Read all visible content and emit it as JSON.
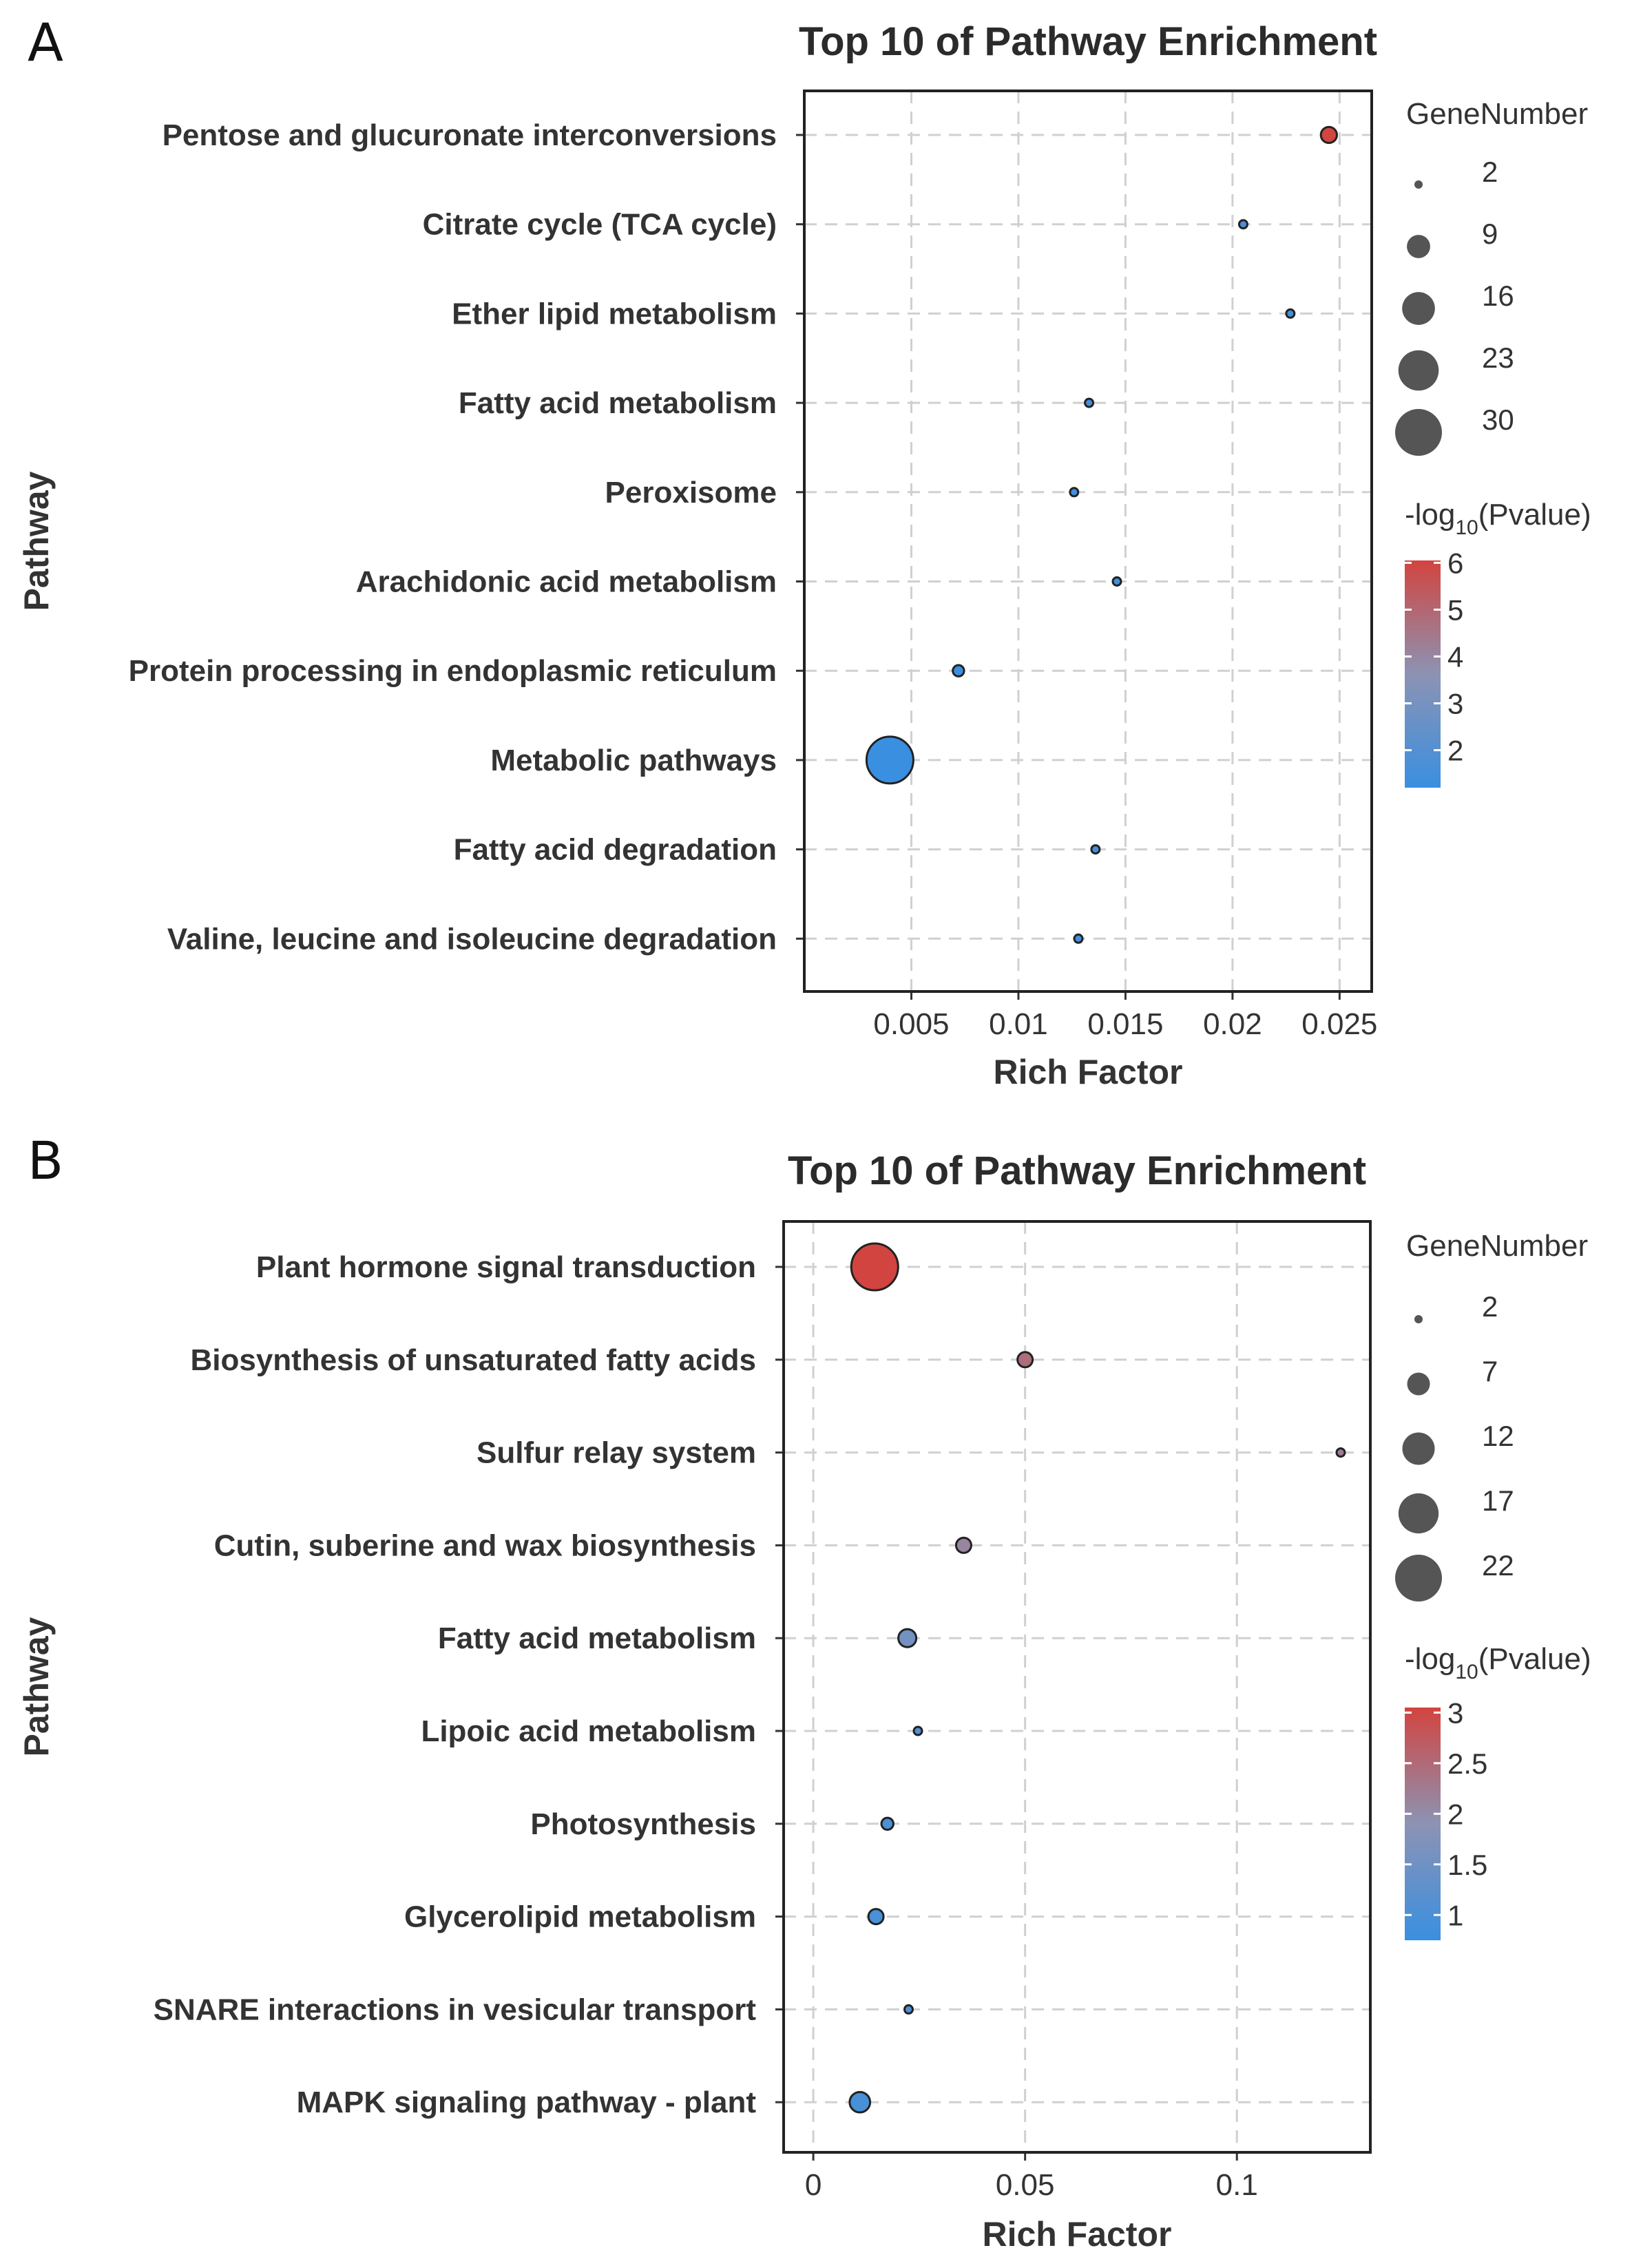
{
  "chart_data": [
    {
      "panel": "A",
      "type": "scatter",
      "title": "Top 10 of Pathway Enrichment",
      "xlabel": "Rich Factor",
      "ylabel": "Pathway",
      "xlim": [
        0.0,
        0.0265
      ],
      "xticks": [
        0.005,
        0.01,
        0.015,
        0.02,
        0.025
      ],
      "xtick_labels": [
        "0.005",
        "0.01",
        "0.015",
        "0.02",
        "0.025"
      ],
      "categories": [
        "Pentose and glucuronate interconversions",
        "Citrate cycle (TCA cycle)",
        "Ether lipid metabolism",
        "Fatty acid metabolism",
        "Peroxisome",
        "Arachidonic acid metabolism",
        "Protein processing in endoplasmic reticulum",
        "Metabolic pathways",
        "Fatty acid degradation",
        "Valine, leucine and isoleucine degradation"
      ],
      "rich_factor": [
        0.0245,
        0.0205,
        0.0227,
        0.0133,
        0.0126,
        0.0146,
        0.0072,
        0.004,
        0.0136,
        0.0128
      ],
      "gene_number": [
        5,
        2,
        2,
        2,
        2,
        2,
        3,
        30,
        2,
        2
      ],
      "neg_log10_p": [
        6.0,
        1.6,
        1.5,
        1.5,
        1.5,
        1.5,
        1.3,
        1.2,
        1.5,
        1.5
      ],
      "size_legend": {
        "title": "GeneNumber",
        "values": [
          2,
          9,
          16,
          23,
          30
        ]
      },
      "color_legend": {
        "title_pre": "-log",
        "title_sub": "10",
        "title_post": "(Pvalue)",
        "min": 1.2,
        "max": 6.05,
        "ticks": [
          2,
          3,
          4,
          5,
          6
        ]
      },
      "grid": true
    },
    {
      "panel": "B",
      "type": "scatter",
      "title": "Top 10 of Pathway Enrichment",
      "xlabel": "Rich Factor",
      "ylabel": "Pathway",
      "xlim": [
        -0.007,
        0.1315
      ],
      "xticks": [
        0,
        0.05,
        0.1
      ],
      "xtick_labels": [
        "0",
        "0.05",
        "0.1"
      ],
      "categories": [
        "Plant hormone signal transduction",
        "Biosynthesis of unsaturated fatty acids",
        "Sulfur relay system",
        "Cutin, suberine and wax biosynthesis",
        "Fatty acid metabolism",
        "Lipoic acid metabolism",
        "Photosynthesis",
        "Glycerolipid metabolism",
        "SNARE interactions in vesicular transport",
        "MAPK signaling pathway - plant"
      ],
      "rich_factor": [
        0.0145,
        0.05,
        0.1245,
        0.0355,
        0.0222,
        0.0247,
        0.0175,
        0.0148,
        0.0225,
        0.011
      ],
      "gene_number": [
        22,
        4,
        2,
        4,
        5,
        2,
        3,
        4,
        2,
        6
      ],
      "neg_log10_p": [
        3.05,
        2.45,
        2.25,
        2.1,
        1.55,
        1.1,
        1.0,
        0.95,
        1.05,
        0.95
      ],
      "size_legend": {
        "title": "GeneNumber",
        "values": [
          2,
          7,
          12,
          17,
          22
        ]
      },
      "color_legend": {
        "title_pre": "-log",
        "title_sub": "10",
        "title_post": "(Pvalue)",
        "min": 0.75,
        "max": 3.05,
        "ticks": [
          1,
          1.5,
          2,
          2.5,
          3
        ]
      },
      "grid": true
    }
  ],
  "panels": [
    "A",
    "B"
  ],
  "colors": {
    "low": "#3a8fe0",
    "mid": "#8c93b4",
    "high": "#d2443f"
  }
}
